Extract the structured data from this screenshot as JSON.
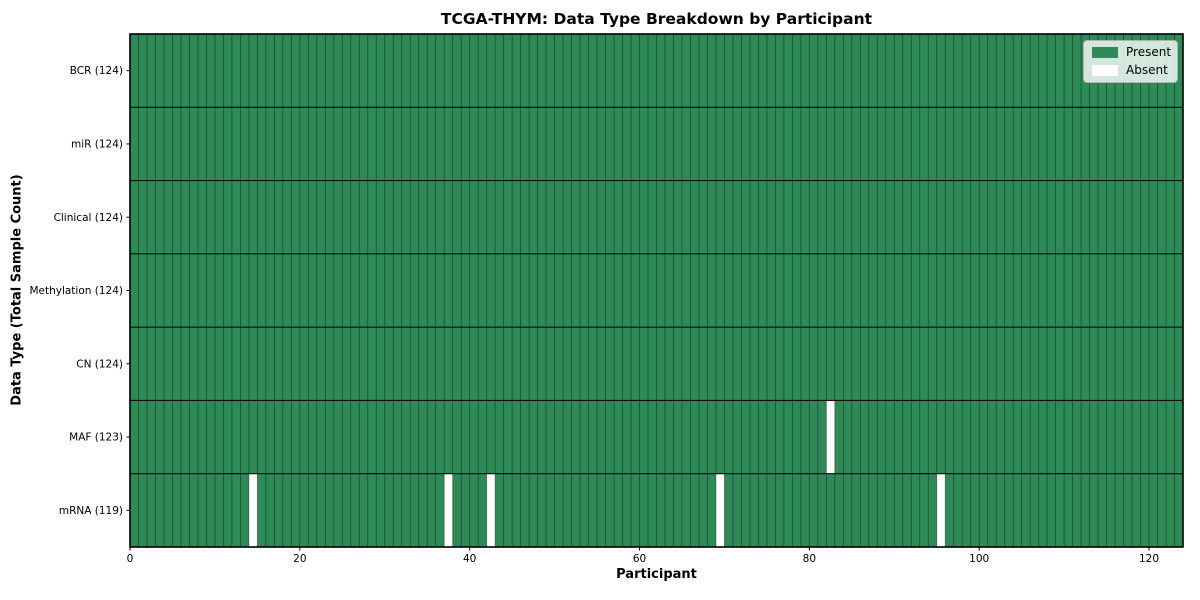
{
  "chart_data": {
    "type": "heatmap",
    "title": "TCGA-THYM: Data Type Breakdown by Participant",
    "xlabel": "Participant",
    "ylabel": "Data Type (Total Sample Count)",
    "xlim": [
      0,
      124
    ],
    "n_participants": 124,
    "x_ticks": [
      0,
      20,
      40,
      60,
      80,
      100,
      120
    ],
    "grid": "cell-edges",
    "legend_position": "upper right",
    "rows": [
      {
        "label": "BCR (124)",
        "data_type": "BCR",
        "present_count": 124,
        "absent_participants": []
      },
      {
        "label": "miR (124)",
        "data_type": "miR",
        "present_count": 124,
        "absent_participants": []
      },
      {
        "label": "Clinical (124)",
        "data_type": "Clinical",
        "present_count": 124,
        "absent_participants": []
      },
      {
        "label": "Methylation (124)",
        "data_type": "Methylation",
        "present_count": 124,
        "absent_participants": []
      },
      {
        "label": "CN (124)",
        "data_type": "CN",
        "present_count": 124,
        "absent_participants": []
      },
      {
        "label": "MAF (123)",
        "data_type": "MAF",
        "present_count": 123,
        "absent_participants": [
          82
        ]
      },
      {
        "label": "mRNA (119)",
        "data_type": "mRNA",
        "present_count": 119,
        "absent_participants": [
          14,
          37,
          42,
          69,
          95
        ]
      }
    ],
    "legend": [
      {
        "label": "Present",
        "color": "#2e8b57"
      },
      {
        "label": "Absent",
        "color": "#ffffff"
      }
    ],
    "colors": {
      "present": "#2e8b57",
      "absent": "#ffffff",
      "cell_edge": "rgba(0,0,0,0.45)",
      "row_divider": "#0a0a0a",
      "plot_border": "#000000",
      "tick": "#000000"
    }
  }
}
